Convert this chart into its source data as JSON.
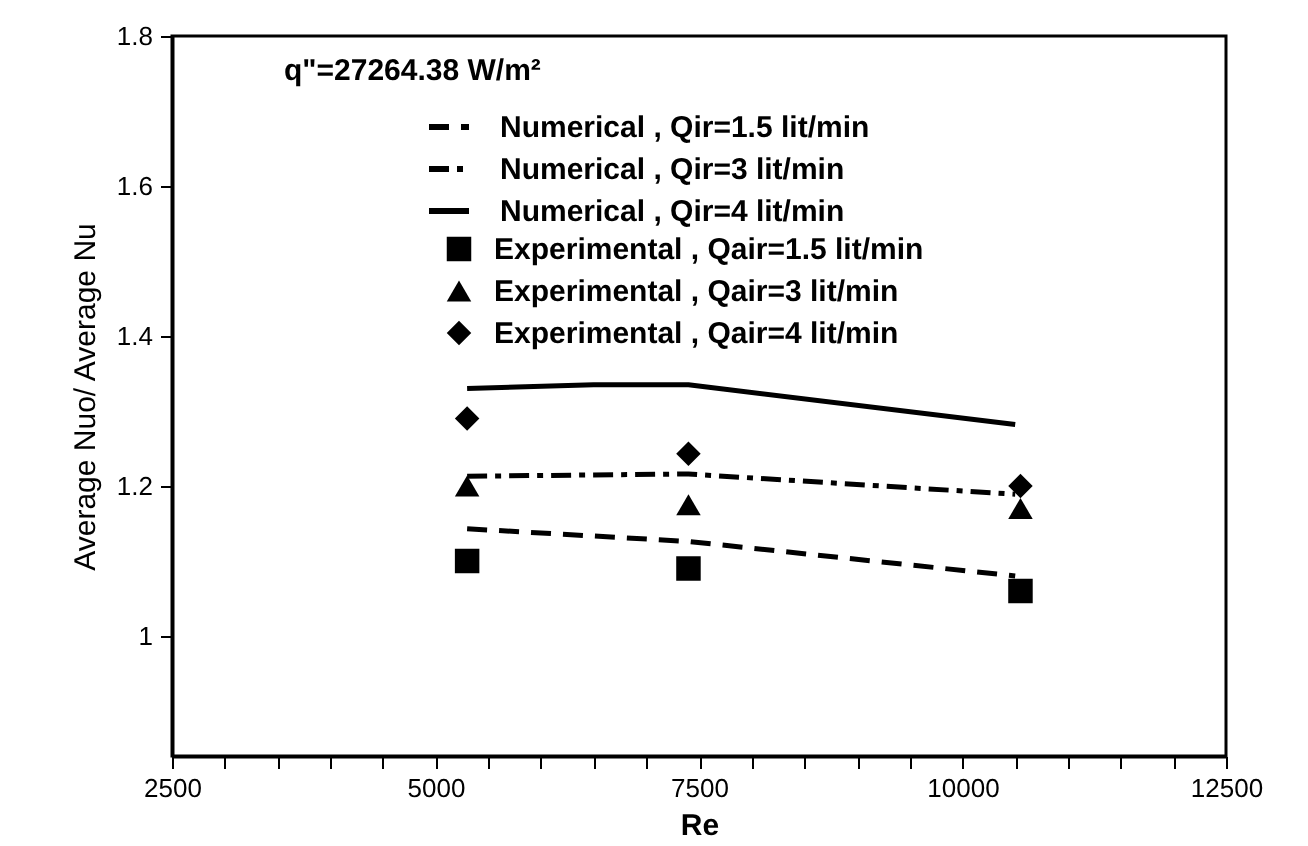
{
  "chart_data": {
    "type": "line",
    "xlabel": "Re",
    "ylabel": "Average Nuo/ Average Nu",
    "annotations": [
      "q\"=27264.38 W/m²"
    ],
    "xlim": [
      2500,
      12500
    ],
    "xticks": [
      2500,
      {
        "value": 3000,
        "label": null
      },
      {
        "value": 3500,
        "label": null
      },
      {
        "value": 4000,
        "label": null
      },
      {
        "value": 4500,
        "label": null
      },
      5000,
      {
        "value": 5500,
        "label": null
      },
      {
        "value": 6000,
        "label": null
      },
      {
        "value": 6500,
        "label": null
      },
      {
        "value": 7000,
        "label": null
      },
      7500,
      {
        "value": 8000,
        "label": null
      },
      {
        "value": 8500,
        "label": null
      },
      {
        "value": 9000,
        "label": null
      },
      {
        "value": 9500,
        "label": null
      },
      10000,
      {
        "value": 10500,
        "label": null
      },
      {
        "value": 11000,
        "label": null
      },
      {
        "value": 11500,
        "label": null
      },
      {
        "value": 12000,
        "label": null
      },
      12500
    ],
    "ylim": [
      0.84,
      1.8
    ],
    "yticks": [
      1,
      1.2,
      1.4,
      1.6,
      1.8
    ],
    "grid": false,
    "legend": "top left",
    "series": [
      {
        "name": "Numerical , Qir=1.5 lit/min",
        "line_style": "dashed",
        "color": "#000000",
        "x": [
          5300,
          7400,
          10500
        ],
        "values": [
          1.143,
          1.126,
          1.08
        ]
      },
      {
        "name": "Numerical , Qir=3 lit/min",
        "line_style": "dashdot",
        "color": "#000000",
        "x": [
          5300,
          7400,
          10500
        ],
        "values": [
          1.213,
          1.216,
          1.189
        ]
      },
      {
        "name": "Numerical , Qir=4 lit/min",
        "line_style": "solid",
        "color": "#000000",
        "x": [
          5300,
          6500,
          7400,
          10500
        ],
        "values": [
          1.33,
          1.335,
          1.335,
          1.282
        ]
      },
      {
        "name": "Experimental , Qair=1.5 lit/min",
        "type": "scatter",
        "marker": "square",
        "color": "#000000",
        "x": [
          5300,
          7400,
          10550
        ],
        "values": [
          1.1,
          1.09,
          1.06
        ]
      },
      {
        "name": "Experimental , Qair=3 lit/min",
        "type": "scatter",
        "marker": "triangle",
        "color": "#000000",
        "x": [
          5300,
          7400,
          10550
        ],
        "values": [
          1.2,
          1.175,
          1.17
        ]
      },
      {
        "name": "Experimental , Qair=4 lit/min",
        "type": "scatter",
        "marker": "diamond",
        "color": "#000000",
        "x": [
          5300,
          7400,
          10550
        ],
        "values": [
          1.29,
          1.243,
          1.2
        ]
      }
    ]
  }
}
